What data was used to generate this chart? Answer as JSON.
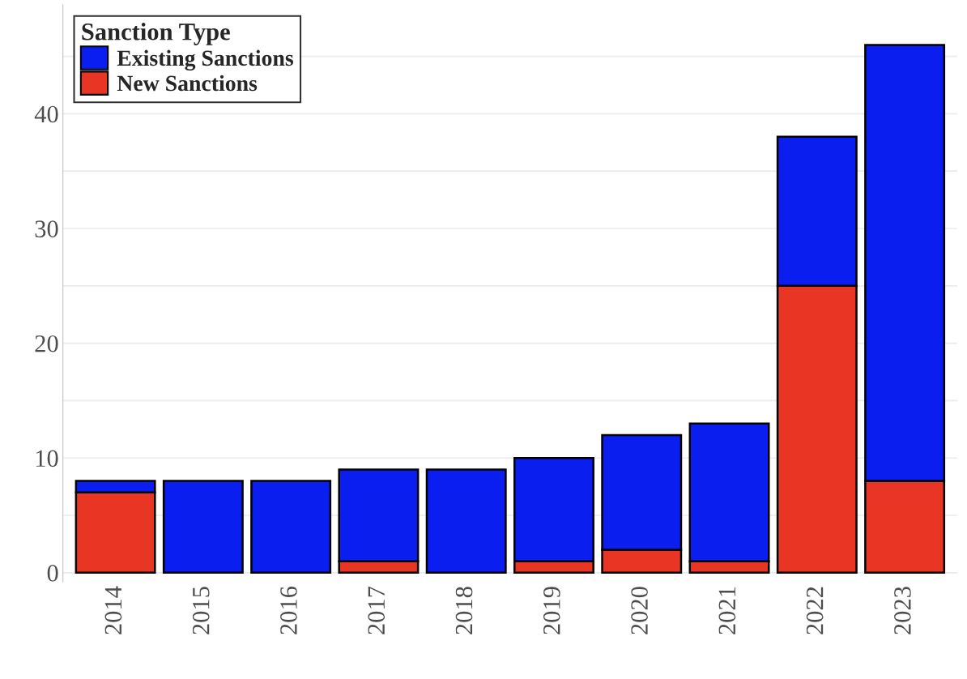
{
  "chart_data": {
    "type": "bar",
    "stacked": true,
    "legend_title": "Sanction Type",
    "legend": "top left",
    "grid": "y",
    "categories": [
      "2014",
      "2015",
      "2016",
      "2017",
      "2018",
      "2019",
      "2020",
      "2021",
      "2022",
      "2023"
    ],
    "series": [
      {
        "name": "New Sanctions",
        "color": "#e83524",
        "values": [
          7,
          0,
          0,
          1,
          0,
          1,
          2,
          1,
          25,
          8
        ]
      },
      {
        "name": "Existing Sanctions",
        "color": "#0a1ef0",
        "values": [
          1,
          8,
          8,
          8,
          9,
          9,
          10,
          12,
          13,
          38
        ]
      }
    ],
    "ylim": [
      -0.8,
      49.5
    ],
    "yticks": [
      0,
      {
        "value": 5,
        "label": null
      },
      10,
      {
        "value": 15,
        "label": null
      },
      20,
      {
        "value": 25,
        "label": null
      },
      30,
      {
        "value": 35,
        "label": null
      },
      40,
      {
        "value": 45,
        "label": null
      }
    ]
  }
}
